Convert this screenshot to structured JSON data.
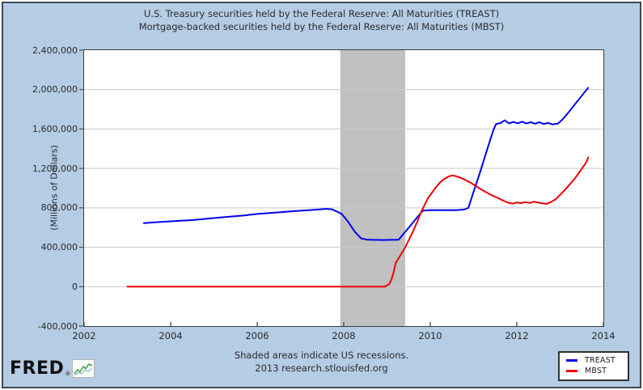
{
  "title": {
    "line1": "U.S. Treasury securities held by the Federal Reserve: All Maturities (TREAST)",
    "line2": "Mortgage-backed securities held by the Federal Reserve: All Maturities (MBST)"
  },
  "y_axis_label": "(Millions of Dollars)",
  "footer": {
    "line1": "Shaded areas indicate US recessions.",
    "line2": "2013 research.stlouisfed.org"
  },
  "logo": {
    "text": "FRED",
    "registered": "®",
    "icon": "sparkline-chart-icon"
  },
  "legend": [
    {
      "label": "TREAST",
      "color": "#0000ee"
    },
    {
      "label": "MBST",
      "color": "#ee0000"
    }
  ],
  "colors": {
    "background": "#b4cce4",
    "plot_background": "#ffffff",
    "frame_border": "#3e4954",
    "axis": "#3c3c3c",
    "gridline": "#c9c9c9",
    "recession_band": "#c0c0c0",
    "treast_line": "#0000ee",
    "mbst_line": "#ee0000",
    "text": "#2b2b2b"
  },
  "chart_data": {
    "type": "line",
    "title": "U.S. Treasury securities held by the Federal Reserve: All Maturities (TREAST) / Mortgage-backed securities held by the Federal Reserve: All Maturities (MBST)",
    "xlabel": "",
    "ylabel": "(Millions of Dollars)",
    "xlim": [
      2002,
      2014
    ],
    "ylim": [
      -400000,
      2400000
    ],
    "grid": true,
    "legend_position": "bottom-right",
    "x_ticks": [
      2002,
      2004,
      2006,
      2008,
      2010,
      2012,
      2014
    ],
    "y_ticks": [
      -400000,
      0,
      400000,
      800000,
      1200000,
      1600000,
      2000000,
      2400000
    ],
    "y_tick_labels": [
      "-400,000",
      "0",
      "400,000",
      "800,000",
      "1,200,000",
      "1,600,000",
      "2,000,000",
      "2,400,000"
    ],
    "recession_bands": [
      {
        "start": 2007.92,
        "end": 2009.42
      }
    ],
    "series": [
      {
        "name": "TREAST",
        "color": "#0000ee",
        "points": [
          [
            2003.38,
            645000
          ],
          [
            2003.6,
            652000
          ],
          [
            2003.9,
            660000
          ],
          [
            2004.2,
            668000
          ],
          [
            2004.5,
            676000
          ],
          [
            2004.8,
            688000
          ],
          [
            2005.1,
            700000
          ],
          [
            2005.4,
            712000
          ],
          [
            2005.7,
            723000
          ],
          [
            2006.0,
            738000
          ],
          [
            2006.3,
            748000
          ],
          [
            2006.6,
            758000
          ],
          [
            2006.9,
            768000
          ],
          [
            2007.2,
            777000
          ],
          [
            2007.45,
            784000
          ],
          [
            2007.6,
            790000
          ],
          [
            2007.72,
            786000
          ],
          [
            2007.85,
            760000
          ],
          [
            2007.95,
            740000
          ],
          [
            2008.1,
            660000
          ],
          [
            2008.25,
            560000
          ],
          [
            2008.4,
            490000
          ],
          [
            2008.55,
            476000
          ],
          [
            2008.9,
            474000
          ],
          [
            2009.27,
            477000
          ],
          [
            2009.4,
            545000
          ],
          [
            2009.55,
            625000
          ],
          [
            2009.7,
            705000
          ],
          [
            2009.83,
            772000
          ],
          [
            2010.0,
            776000
          ],
          [
            2010.3,
            776000
          ],
          [
            2010.6,
            777000
          ],
          [
            2010.78,
            782000
          ],
          [
            2010.88,
            800000
          ],
          [
            2011.0,
            962000
          ],
          [
            2011.15,
            1160000
          ],
          [
            2011.3,
            1370000
          ],
          [
            2011.45,
            1580000
          ],
          [
            2011.52,
            1650000
          ],
          [
            2011.62,
            1660000
          ],
          [
            2011.72,
            1688000
          ],
          [
            2011.82,
            1656000
          ],
          [
            2011.92,
            1672000
          ],
          [
            2012.02,
            1658000
          ],
          [
            2012.12,
            1674000
          ],
          [
            2012.22,
            1656000
          ],
          [
            2012.32,
            1670000
          ],
          [
            2012.42,
            1654000
          ],
          [
            2012.52,
            1668000
          ],
          [
            2012.62,
            1650000
          ],
          [
            2012.72,
            1662000
          ],
          [
            2012.82,
            1647000
          ],
          [
            2012.95,
            1655000
          ],
          [
            2013.05,
            1695000
          ],
          [
            2013.15,
            1745000
          ],
          [
            2013.25,
            1800000
          ],
          [
            2013.35,
            1855000
          ],
          [
            2013.45,
            1910000
          ],
          [
            2013.55,
            1965000
          ],
          [
            2013.65,
            2018000
          ]
        ]
      },
      {
        "name": "MBST",
        "color": "#ee0000",
        "points": [
          [
            2003.0,
            0
          ],
          [
            2008.0,
            0
          ],
          [
            2008.95,
            0
          ],
          [
            2009.05,
            25000
          ],
          [
            2009.1,
            68000
          ],
          [
            2009.15,
            140000
          ],
          [
            2009.2,
            240000
          ],
          [
            2009.3,
            310000
          ],
          [
            2009.42,
            400000
          ],
          [
            2009.5,
            470000
          ],
          [
            2009.6,
            560000
          ],
          [
            2009.7,
            660000
          ],
          [
            2009.78,
            750000
          ],
          [
            2009.87,
            830000
          ],
          [
            2009.95,
            900000
          ],
          [
            2010.05,
            960000
          ],
          [
            2010.15,
            1020000
          ],
          [
            2010.25,
            1068000
          ],
          [
            2010.35,
            1100000
          ],
          [
            2010.45,
            1122000
          ],
          [
            2010.52,
            1128000
          ],
          [
            2010.6,
            1120000
          ],
          [
            2010.7,
            1105000
          ],
          [
            2010.8,
            1085000
          ],
          [
            2010.95,
            1050000
          ],
          [
            2011.1,
            1008000
          ],
          [
            2011.25,
            968000
          ],
          [
            2011.4,
            932000
          ],
          [
            2011.55,
            902000
          ],
          [
            2011.7,
            870000
          ],
          [
            2011.8,
            852000
          ],
          [
            2011.9,
            843000
          ],
          [
            2012.0,
            855000
          ],
          [
            2012.1,
            848000
          ],
          [
            2012.2,
            858000
          ],
          [
            2012.3,
            850000
          ],
          [
            2012.4,
            862000
          ],
          [
            2012.5,
            852000
          ],
          [
            2012.6,
            845000
          ],
          [
            2012.7,
            841000
          ],
          [
            2012.8,
            862000
          ],
          [
            2012.9,
            888000
          ],
          [
            2013.0,
            932000
          ],
          [
            2013.1,
            976000
          ],
          [
            2013.2,
            1026000
          ],
          [
            2013.3,
            1076000
          ],
          [
            2013.4,
            1132000
          ],
          [
            2013.5,
            1196000
          ],
          [
            2013.6,
            1258000
          ],
          [
            2013.65,
            1310000
          ]
        ]
      }
    ]
  }
}
